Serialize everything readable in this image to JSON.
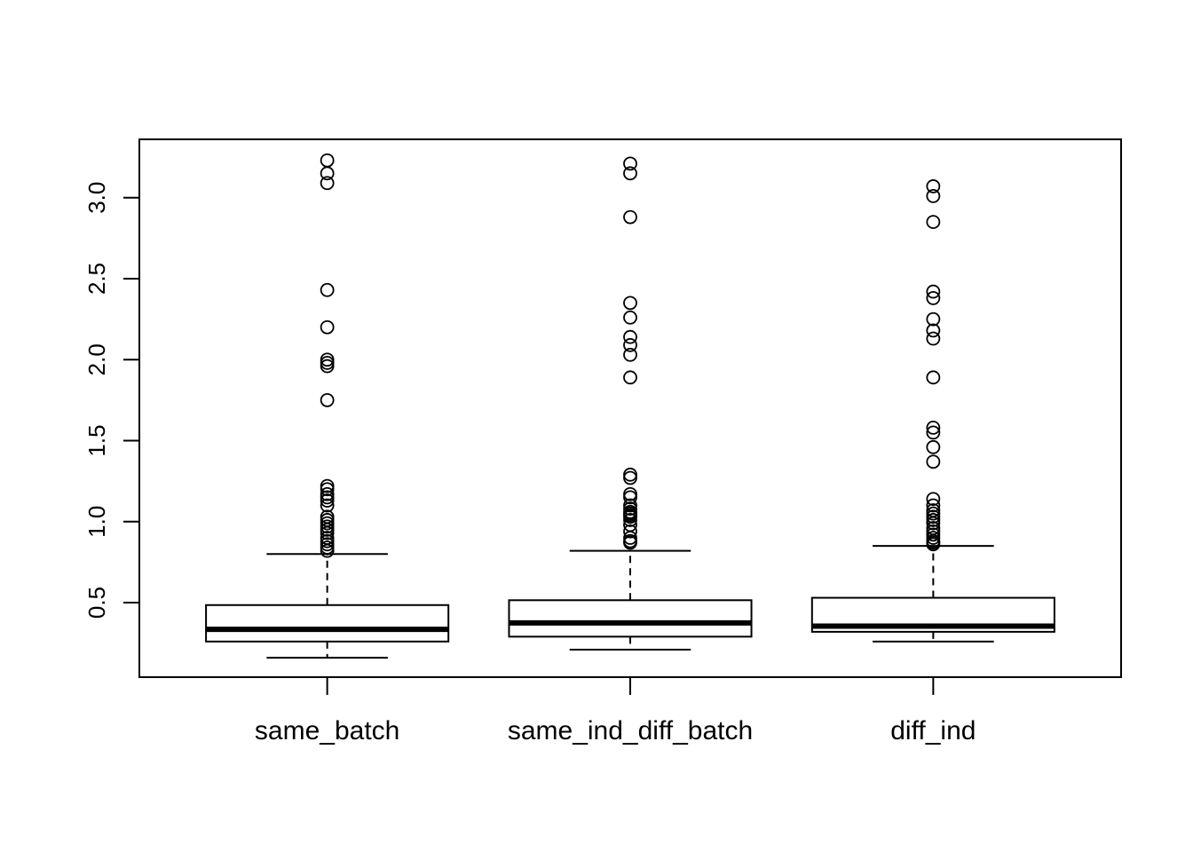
{
  "chart_data": {
    "type": "boxplot",
    "title": "",
    "xlabel": "",
    "ylabel": "",
    "ylim": [
      0.04,
      3.36
    ],
    "yticks": [
      0.5,
      1.0,
      1.5,
      2.0,
      2.5,
      3.0
    ],
    "ytick_labels": [
      "0.5",
      "1.0",
      "1.5",
      "2.0",
      "2.5",
      "3.0"
    ],
    "grid": false,
    "legend": "none",
    "categories": [
      "same_batch",
      "same_ind_diff_batch",
      "diff_ind"
    ],
    "boxes": [
      {
        "category": "same_batch",
        "whisker_low": 0.16,
        "q1": 0.26,
        "median": 0.335,
        "q3": 0.485,
        "whisker_high": 0.8,
        "outliers": [
          3.23,
          3.15,
          3.09,
          2.43,
          2.2,
          2.0,
          1.98,
          1.96,
          1.75,
          1.22,
          1.2,
          1.17,
          1.15,
          1.13,
          1.1,
          1.03,
          1.01,
          0.99,
          0.97,
          0.95,
          0.93,
          0.9,
          0.88,
          0.86,
          0.84,
          0.82
        ]
      },
      {
        "category": "same_ind_diff_batch",
        "whisker_low": 0.21,
        "q1": 0.29,
        "median": 0.375,
        "q3": 0.515,
        "whisker_high": 0.82,
        "outliers": [
          3.21,
          3.15,
          2.88,
          2.35,
          2.26,
          2.14,
          2.09,
          2.03,
          1.89,
          1.29,
          1.27,
          1.17,
          1.15,
          1.1,
          1.08,
          1.06,
          1.05,
          1.04,
          1.03,
          1.01,
          0.98,
          0.94,
          0.9,
          0.88,
          0.87
        ]
      },
      {
        "category": "diff_ind",
        "whisker_low": 0.26,
        "q1": 0.32,
        "median": 0.355,
        "q3": 0.53,
        "whisker_high": 0.85,
        "outliers": [
          3.07,
          3.01,
          2.85,
          2.42,
          2.38,
          2.25,
          2.18,
          2.13,
          1.89,
          1.58,
          1.55,
          1.46,
          1.37,
          1.14,
          1.1,
          1.07,
          1.05,
          1.03,
          1.01,
          0.99,
          0.96,
          0.94,
          0.92,
          0.9,
          0.88,
          0.87,
          0.86
        ]
      }
    ]
  }
}
